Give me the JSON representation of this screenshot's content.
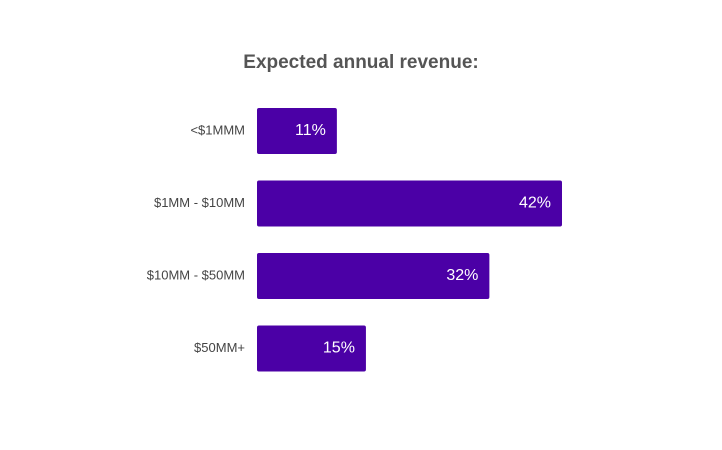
{
  "chart_data": {
    "type": "bar",
    "orientation": "horizontal",
    "title": "Expected annual revenue:",
    "categories": [
      "<$1MMM",
      "$1MM - $10MM",
      "$10MM - $50MM",
      "$50MM+"
    ],
    "values": [
      11,
      42,
      32,
      15
    ],
    "value_labels": [
      "11%",
      "42%",
      "32%",
      "15%"
    ],
    "unit": "%",
    "xlim": [
      0,
      42
    ],
    "grid": false,
    "legend": "none",
    "bar_color": "#4b00a6"
  }
}
